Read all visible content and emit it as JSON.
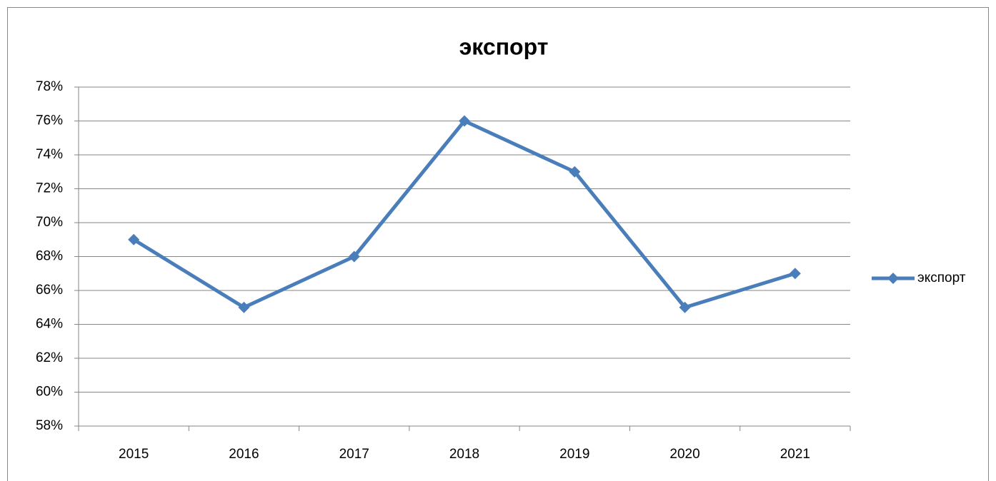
{
  "chart_data": {
    "type": "line",
    "title": "экспорт",
    "categories": [
      "2015",
      "2016",
      "2017",
      "2018",
      "2019",
      "2020",
      "2021"
    ],
    "series": [
      {
        "name": "экспорт",
        "color": "#4a7ebb",
        "values": [
          69,
          65,
          68,
          76,
          73,
          65,
          67
        ]
      }
    ],
    "ylim": [
      58,
      78
    ],
    "yticks": [
      {
        "value": 58,
        "label": "58%"
      },
      {
        "value": 60,
        "label": "60%"
      },
      {
        "value": 62,
        "label": "62%"
      },
      {
        "value": 64,
        "label": "64%"
      },
      {
        "value": 66,
        "label": "66%"
      },
      {
        "value": 68,
        "label": "68%"
      },
      {
        "value": 70,
        "label": "70%"
      },
      {
        "value": 72,
        "label": "72%"
      },
      {
        "value": 74,
        "label": "74%"
      },
      {
        "value": 76,
        "label": "76%"
      },
      {
        "value": 78,
        "label": "78%"
      }
    ],
    "grid": true,
    "legend": "right"
  }
}
